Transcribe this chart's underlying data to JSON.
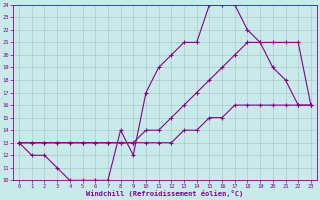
{
  "xlabel": "Windchill (Refroidissement éolien,°C)",
  "xlim": [
    -0.5,
    23.5
  ],
  "ylim": [
    10,
    24
  ],
  "xticks": [
    0,
    1,
    2,
    3,
    4,
    5,
    6,
    7,
    8,
    9,
    10,
    11,
    12,
    13,
    14,
    15,
    16,
    17,
    18,
    19,
    20,
    21,
    22,
    23
  ],
  "yticks": [
    10,
    11,
    12,
    13,
    14,
    15,
    16,
    17,
    18,
    19,
    20,
    21,
    22,
    23,
    24
  ],
  "bg_color": "#c8eaea",
  "line_color": "#880088",
  "grid_color": "#b0c8c8",
  "line1_x": [
    0,
    1,
    2,
    3,
    4,
    5,
    6,
    7,
    8,
    9,
    10,
    11,
    12,
    13,
    14,
    15,
    16,
    17,
    18,
    19,
    20,
    21,
    22,
    23
  ],
  "line1_y": [
    13,
    12,
    12,
    11,
    10,
    10,
    10,
    10,
    14,
    12,
    17,
    19,
    20,
    21,
    21,
    24,
    24,
    24,
    22,
    21,
    19,
    18,
    16,
    16
  ],
  "line2_x": [
    0,
    1,
    2,
    3,
    4,
    5,
    6,
    7,
    8,
    9,
    10,
    11,
    12,
    13,
    14,
    15,
    16,
    17,
    18,
    19,
    20,
    21,
    22,
    23
  ],
  "line2_y": [
    13,
    13,
    13,
    13,
    13,
    13,
    13,
    13,
    13,
    13,
    14,
    14,
    15,
    16,
    17,
    18,
    19,
    20,
    21,
    21,
    21,
    21,
    21,
    16
  ],
  "line3_x": [
    0,
    1,
    2,
    3,
    4,
    5,
    6,
    7,
    8,
    9,
    10,
    11,
    12,
    13,
    14,
    15,
    16,
    17,
    18,
    19,
    20,
    21,
    22,
    23
  ],
  "line3_y": [
    13,
    13,
    13,
    13,
    13,
    13,
    13,
    13,
    13,
    13,
    13,
    13,
    13,
    14,
    14,
    15,
    15,
    16,
    16,
    16,
    16,
    16,
    16,
    16
  ]
}
